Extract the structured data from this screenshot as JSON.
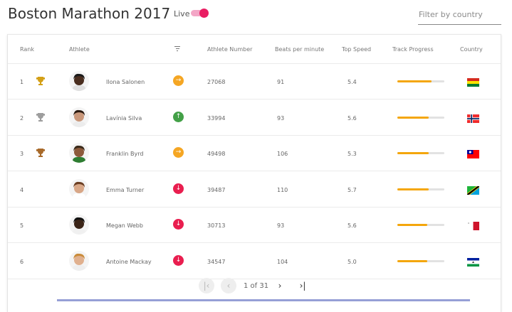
{
  "header": {
    "title": "Boston Marathon 2017",
    "live_label": "Live",
    "live_on": true,
    "filter_placeholder": "Filter by country"
  },
  "table": {
    "columns": {
      "rank": "Rank",
      "athlete": "Athlete",
      "athlete_number": "Athlete Number",
      "bpm": "Beats per minute",
      "speed": "Top Speed",
      "progress": "Track Progress",
      "country": "Country"
    },
    "rows": [
      {
        "rank": "1",
        "trophy": "gold-trophy-icon",
        "name": "Ilona Salonen",
        "status": "arrow-right-icon",
        "status_color": "#f5a623",
        "number": "27068",
        "bpm": "91",
        "speed": "5.4",
        "progress": 0.72,
        "flag": "bolivia-flag-icon"
      },
      {
        "rank": "2",
        "trophy": "silver-trophy-icon",
        "name": "Lavínia Silva",
        "status": "arrow-up-icon",
        "status_color": "#43a047",
        "number": "33994",
        "bpm": "93",
        "speed": "5.6",
        "progress": 0.66,
        "flag": "norway-flag-icon"
      },
      {
        "rank": "3",
        "trophy": "bronze-trophy-icon",
        "name": "Franklin Byrd",
        "status": "arrow-right-icon",
        "status_color": "#f5a623",
        "number": "49498",
        "bpm": "106",
        "speed": "5.3",
        "progress": 0.66,
        "flag": "taiwan-flag-icon"
      },
      {
        "rank": "4",
        "trophy": "",
        "name": "Emma Turner",
        "status": "arrow-down-icon",
        "status_color": "#e91e4f",
        "number": "39487",
        "bpm": "110",
        "speed": "5.7",
        "progress": 0.66,
        "flag": "tanzania-flag-icon"
      },
      {
        "rank": "5",
        "trophy": "",
        "name": "Megan Webb",
        "status": "arrow-down-icon",
        "status_color": "#e91e4f",
        "number": "30713",
        "bpm": "93",
        "speed": "5.6",
        "progress": 0.64,
        "flag": "malta-flag-icon"
      },
      {
        "rank": "6",
        "trophy": "",
        "name": "Antoine Mackay",
        "status": "arrow-down-icon",
        "status_color": "#e91e4f",
        "number": "34547",
        "bpm": "104",
        "speed": "5.0",
        "progress": 0.64,
        "flag": "lesotho-flag-icon"
      }
    ]
  },
  "pager": {
    "info": "1 of 31",
    "first_icon": "first-page-icon",
    "prev_icon": "chevron-left-icon",
    "next_icon": "chevron-right-icon",
    "last_icon": "last-page-icon"
  },
  "colors": {
    "toggle_accent": "#e91e63",
    "progress_fill": "#f4a60c",
    "progress_track": "#e2e2e2"
  }
}
